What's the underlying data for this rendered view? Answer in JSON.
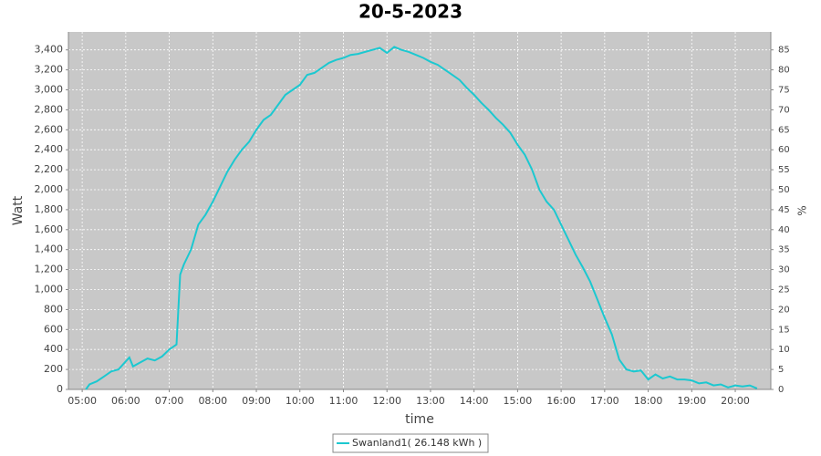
{
  "chart_data": {
    "type": "line",
    "title": "20-5-2023",
    "x_label": "time",
    "y_label": "Watt",
    "y2_label": "%",
    "x": [
      "05:05",
      "05:10",
      "05:20",
      "05:30",
      "05:40",
      "05:50",
      "06:00",
      "06:05",
      "06:10",
      "06:20",
      "06:30",
      "06:40",
      "06:50",
      "07:00",
      "07:10",
      "07:15",
      "07:20",
      "07:30",
      "07:40",
      "07:50",
      "08:00",
      "08:10",
      "08:20",
      "08:30",
      "08:40",
      "08:50",
      "09:00",
      "09:10",
      "09:20",
      "09:30",
      "09:40",
      "09:50",
      "10:00",
      "10:10",
      "10:20",
      "10:30",
      "10:40",
      "10:50",
      "11:00",
      "11:10",
      "11:20",
      "11:30",
      "11:40",
      "11:50",
      "12:00",
      "12:10",
      "12:20",
      "12:30",
      "12:40",
      "12:50",
      "13:00",
      "13:10",
      "13:20",
      "13:30",
      "13:40",
      "13:50",
      "14:00",
      "14:10",
      "14:20",
      "14:30",
      "14:40",
      "14:50",
      "15:00",
      "15:10",
      "15:20",
      "15:30",
      "15:40",
      "15:50",
      "16:00",
      "16:10",
      "16:20",
      "16:30",
      "16:40",
      "16:50",
      "17:00",
      "17:10",
      "17:20",
      "17:30",
      "17:40",
      "17:50",
      "18:00",
      "18:10",
      "18:20",
      "18:30",
      "18:40",
      "18:50",
      "19:00",
      "19:10",
      "19:20",
      "19:30",
      "19:40",
      "19:50",
      "20:00",
      "20:10",
      "20:20",
      "20:30"
    ],
    "series": [
      {
        "name": "Swanland1( 26.148 kWh )",
        "color": "#1cc8d0",
        "values": [
          0,
          50,
          80,
          130,
          180,
          200,
          280,
          320,
          230,
          270,
          310,
          290,
          330,
          400,
          450,
          1150,
          1250,
          1400,
          1650,
          1750,
          1880,
          2030,
          2180,
          2300,
          2400,
          2480,
          2600,
          2700,
          2750,
          2850,
          2950,
          3000,
          3050,
          3150,
          3170,
          3220,
          3270,
          3300,
          3320,
          3350,
          3360,
          3380,
          3400,
          3420,
          3370,
          3430,
          3400,
          3380,
          3350,
          3320,
          3280,
          3250,
          3200,
          3150,
          3100,
          3020,
          2950,
          2870,
          2800,
          2720,
          2650,
          2570,
          2450,
          2350,
          2200,
          2000,
          1880,
          1800,
          1650,
          1500,
          1350,
          1220,
          1080,
          900,
          720,
          550,
          300,
          200,
          180,
          190,
          100,
          150,
          110,
          130,
          100,
          100,
          90,
          60,
          70,
          40,
          50,
          20,
          40,
          30,
          40,
          10
        ]
      }
    ],
    "xlim": [
      "04:41",
      "20:49"
    ],
    "xticks": [
      "05:00",
      "06:00",
      "07:00",
      "08:00",
      "09:00",
      "10:00",
      "11:00",
      "12:00",
      "13:00",
      "14:00",
      "15:00",
      "16:00",
      "17:00",
      "18:00",
      "19:00",
      "20:00"
    ],
    "ylim": [
      0,
      3580
    ],
    "yticks": [
      0,
      200,
      400,
      600,
      800,
      {
        "value": 1000,
        "label": "1,000"
      },
      {
        "value": 1200,
        "label": "1,200"
      },
      {
        "value": 1400,
        "label": "1,400"
      },
      {
        "value": 1600,
        "label": "1,600"
      },
      {
        "value": 1800,
        "label": "1,800"
      },
      {
        "value": 2000,
        "label": "2,000"
      },
      {
        "value": 2200,
        "label": "2,200"
      },
      {
        "value": 2400,
        "label": "2,400"
      },
      {
        "value": 2600,
        "label": "2,600"
      },
      {
        "value": 2800,
        "label": "2,800"
      },
      {
        "value": 3000,
        "label": "3,000"
      },
      {
        "value": 3200,
        "label": "3,200"
      },
      {
        "value": 3400,
        "label": "3,400"
      }
    ],
    "y2lim": [
      0,
      89.5
    ],
    "y2ticks": [
      0,
      5,
      10,
      15,
      20,
      25,
      30,
      35,
      40,
      45,
      50,
      55,
      60,
      65,
      70,
      75,
      80,
      85
    ],
    "grid": true,
    "legend": "bottom"
  }
}
